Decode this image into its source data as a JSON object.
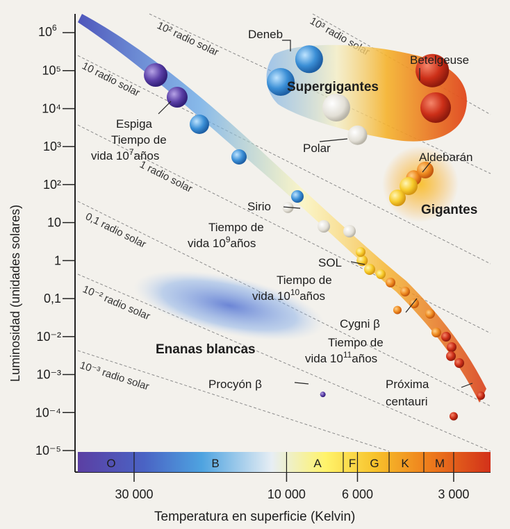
{
  "chart_data": {
    "type": "scatter",
    "title": "",
    "xlabel": "Temperatura en superficie (Kelvin)",
    "ylabel": "Luminosidad (unidades solares)",
    "x_scale": "log-reversed",
    "y_scale": "log",
    "xlim": [
      45000,
      2300
    ],
    "ylim": [
      1e-05,
      1000000
    ],
    "spectral_classes": [
      "O",
      "B",
      "A",
      "F",
      "G",
      "K",
      "M"
    ],
    "radius_lines": [
      "10³ radio solar",
      "10² radio solar",
      "10 radio solar",
      "1 radio solar",
      "0,1 radio solar",
      "10⁻² radio solar",
      "10⁻³ radio solar"
    ],
    "regions": [
      "Supergigantes",
      "Gigantes",
      "Enanas blancas"
    ],
    "stars": [
      {
        "name": "Deneb",
        "x": 8500,
        "y": 200000
      },
      {
        "name": "Betelgeuse",
        "x": 3500,
        "y": 100000
      },
      {
        "name": "Espiga",
        "x": 22000,
        "y": 20000
      },
      {
        "name": "Polar",
        "x": 6000,
        "y": 2000
      },
      {
        "name": "Aldebarán",
        "x": 4000,
        "y": 150
      },
      {
        "name": "Sirio",
        "x": 9900,
        "y": 25
      },
      {
        "name": "SOL",
        "x": 5800,
        "y": 1
      },
      {
        "name": "Cygni β",
        "x": 4500,
        "y": 0.05
      },
      {
        "name": "Procyon β",
        "x": 7700,
        "y": 0.0003
      },
      {
        "name": "Próxima centauri",
        "x": 3000,
        "y": 8e-05
      }
    ]
  },
  "y_axis": {
    "title": "Luminosidad (unidades solares)",
    "ticks": [
      "10⁶",
      "10⁵",
      "10⁴",
      "10³",
      "10²",
      "10",
      "1",
      "0,1",
      "10⁻²",
      "10⁻³",
      "10⁻⁴",
      "10⁻⁵"
    ],
    "sup": [
      "6"
    ]
  },
  "x_axis": {
    "title": "Temperatura en superficie (Kelvin)",
    "ticks": [
      "30 000",
      "10 000",
      "6 000",
      "3 000"
    ]
  },
  "stars": {
    "deneb": "Deneb",
    "betelgeuse": "Betelgeuse",
    "espiga": "Espiga",
    "polar": "Polar",
    "aldebaran": "Aldebarán",
    "sirio": "Sirio",
    "sol": "SOL",
    "cygni": "Cygni β",
    "procyon": "Procyón β",
    "proxima_line1": "Próxima",
    "proxima_line2": "centauri"
  },
  "regions": {
    "supergigantes": "Supergigantes",
    "gigantes": "Gigantes",
    "enanas_blancas": "Enanas blancas"
  },
  "lifetimes": {
    "prefix": "vida",
    "suffix": "años",
    "espiga_line1": "Tiempo de",
    "espiga_exp": "7",
    "sirio_line1": "Tiempo de",
    "sirio_exp": "9",
    "sol_line1": "Tiempo de",
    "sol_exp": "10",
    "cygni_line1": "Tiempo de",
    "cygni_exp": "11"
  },
  "colors": {
    "axis": "#222222",
    "radius_line": "#8a8a8a",
    "background": "#f3f1ec"
  }
}
